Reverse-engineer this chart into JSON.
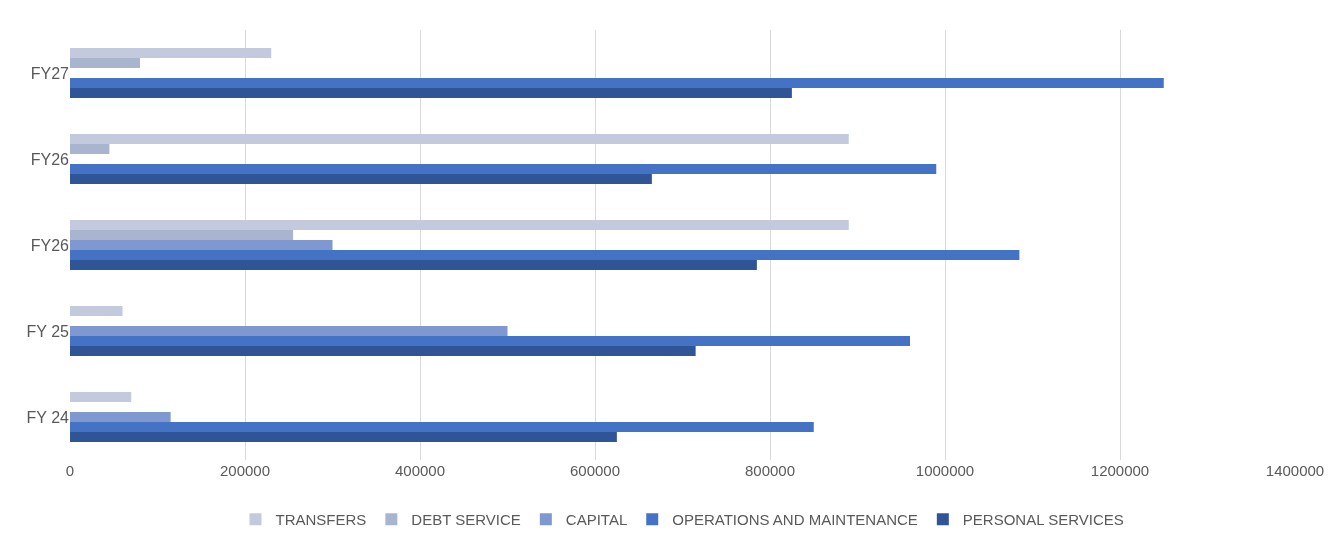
{
  "chart_data": {
    "type": "bar",
    "orientation": "horizontal",
    "categories": [
      "FY27",
      "FY26",
      "FY26",
      "FY 25",
      "FY 24"
    ],
    "series": [
      {
        "name": "TRANSFERS",
        "color": "#c3cadd",
        "values": [
          230000,
          890000,
          890000,
          60000,
          70000
        ]
      },
      {
        "name": "DEBT SERVICE",
        "color": "#a9b5cf",
        "values": [
          80000,
          45000,
          255000,
          null,
          null
        ]
      },
      {
        "name": "CAPITAL",
        "color": "#7f98cf",
        "values": [
          null,
          null,
          300000,
          500000,
          115000
        ]
      },
      {
        "name": "OPERATIONS AND MAINTENANCE",
        "color": "#4472c4",
        "values": [
          1250000,
          990000,
          1085000,
          960000,
          850000
        ]
      },
      {
        "name": "PERSONAL SERVICES",
        "color": "#2f5597",
        "values": [
          825000,
          665000,
          785000,
          715000,
          625000
        ]
      }
    ],
    "xlim": [
      0,
      1400000
    ],
    "xticks": [
      0,
      200000,
      400000,
      600000,
      800000,
      1000000,
      1200000,
      1400000
    ],
    "grid": "x",
    "legend": "bottom"
  }
}
